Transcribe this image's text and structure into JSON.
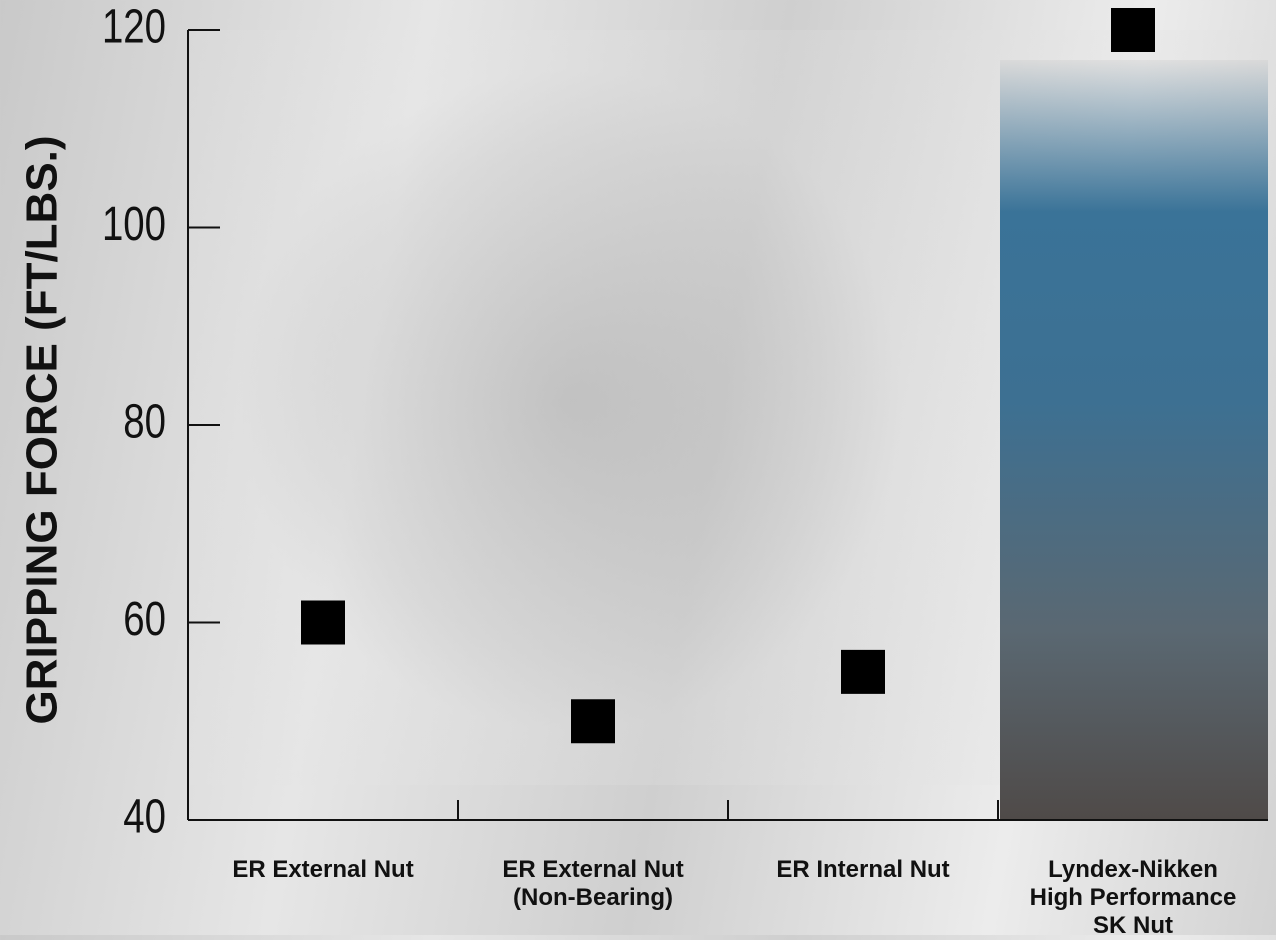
{
  "chart_data": {
    "type": "scatter",
    "y_label": "GRIPPING FORCE (FT/LBS.)",
    "categories": [
      "ER External Nut",
      "ER External Nut\n(Non-Bearing)",
      "ER Internal Nut",
      "Lyndex-Nikken\nHigh Performance\nSK Nut"
    ],
    "values": [
      60,
      50,
      55,
      120
    ],
    "color": "#000000",
    "marker": "square",
    "ylim": [
      40,
      120
    ],
    "yticks": [
      40,
      60,
      80,
      100,
      120
    ]
  }
}
